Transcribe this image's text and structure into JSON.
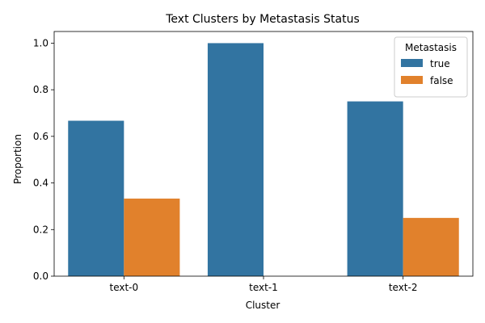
{
  "chart_data": {
    "type": "bar",
    "title": "Text Clusters by Metastasis Status",
    "xlabel": "Cluster",
    "ylabel": "Proportion",
    "categories": [
      "text-0",
      "text-1",
      "text-2"
    ],
    "series": [
      {
        "name": "true",
        "values": [
          0.667,
          1.0,
          0.75
        ],
        "color": "#3274a1"
      },
      {
        "name": "false",
        "values": [
          0.333,
          0.0,
          0.25
        ],
        "color": "#e1812c"
      }
    ],
    "ylim": [
      0,
      1.05
    ],
    "yticks": [
      0.0,
      0.2,
      0.4,
      0.6,
      0.8,
      1.0
    ],
    "ytick_labels": [
      "0.0",
      "0.2",
      "0.4",
      "0.6",
      "0.8",
      "1.0"
    ],
    "grid": false,
    "legend": {
      "title": "Metastasis",
      "placement": "top-right"
    }
  }
}
